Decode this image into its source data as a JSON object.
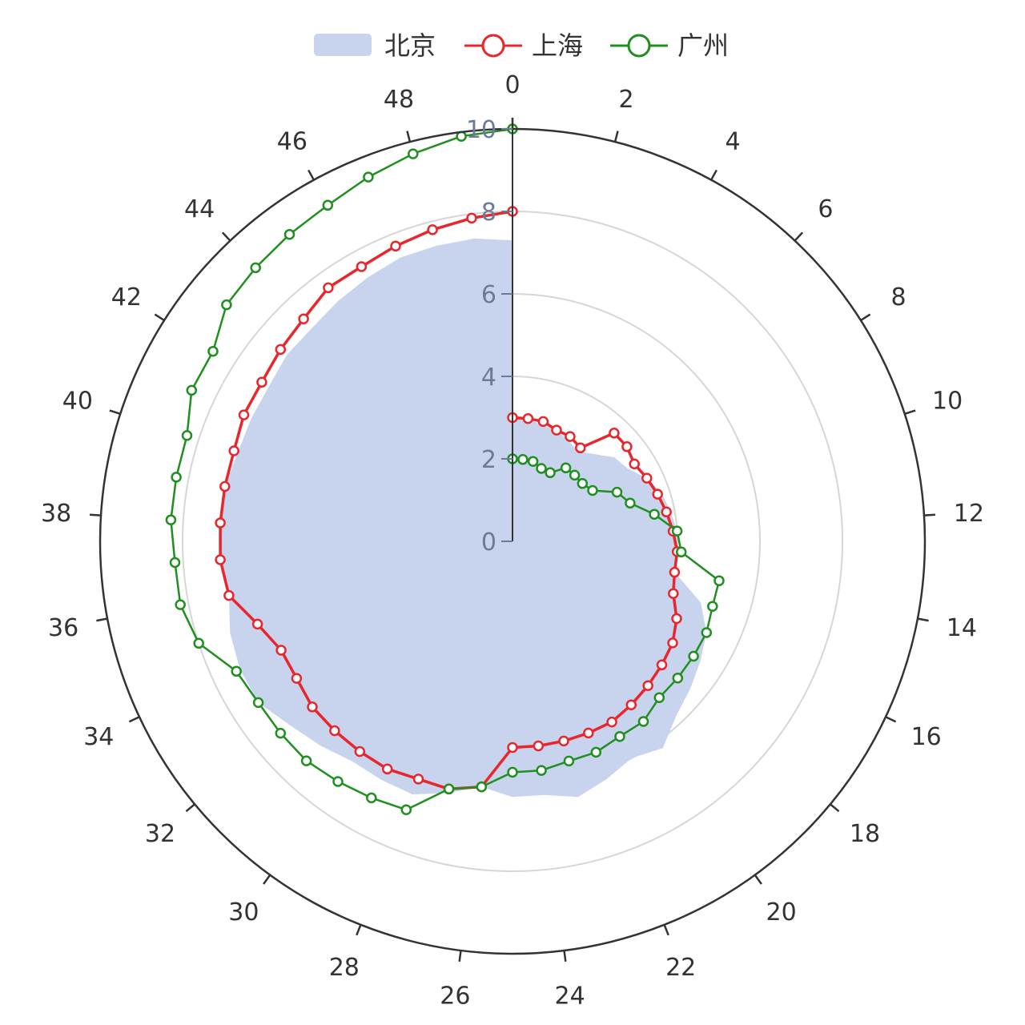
{
  "chart_data": {
    "type": "polar-line",
    "angle_axis": {
      "min": 0,
      "max": 50,
      "tick_labels": [
        "0",
        "2",
        "4",
        "6",
        "8",
        "10",
        "12",
        "14",
        "16",
        "18",
        "20",
        "22",
        "24",
        "26",
        "28",
        "30",
        "32",
        "34",
        "36",
        "38",
        "40",
        "42",
        "44",
        "46",
        "48"
      ],
      "clockwise": true
    },
    "radius_axis": {
      "min": 0,
      "max": 10,
      "tick_labels": [
        "0",
        "2",
        "4",
        "6",
        "8",
        "10"
      ]
    },
    "legend": {
      "position": "top-center"
    },
    "series": [
      {
        "name": "北京",
        "style": "area",
        "color": "#c8d4ee",
        "x": [
          0,
          1,
          2,
          3,
          4,
          5,
          6,
          7,
          8,
          9,
          10,
          11,
          12,
          13,
          14,
          15,
          16,
          17,
          18,
          19,
          20,
          21,
          22,
          23,
          24,
          25,
          26,
          27,
          28,
          29,
          30,
          31,
          32,
          33,
          34,
          35,
          36,
          37,
          38,
          39,
          40,
          41,
          42,
          43,
          44,
          45,
          46,
          47,
          48,
          49,
          50
        ],
        "y": [
          3.0,
          3.0,
          2.9,
          2.9,
          2.8,
          2.7,
          2.9,
          3.2,
          3.3,
          3.6,
          3.8,
          3.9,
          4.0,
          4.0,
          4.0,
          4.8,
          5.2,
          5.4,
          5.6,
          5.8,
          6.2,
          6.0,
          6.2,
          6.4,
          6.2,
          6.2,
          6.0,
          6.3,
          6.6,
          6.6,
          6.6,
          6.8,
          7.0,
          7.3,
          7.3,
          7.2,
          7.0,
          7.1,
          7.1,
          7.1,
          7.0,
          7.0,
          7.0,
          7.1,
          7.1,
          7.2,
          7.3,
          7.4,
          7.4,
          7.4,
          7.3
        ]
      },
      {
        "name": "上海",
        "style": "line",
        "color": "#e8262b",
        "x": [
          0,
          1,
          2,
          3,
          4,
          5,
          6,
          7,
          8,
          9,
          10,
          11,
          12,
          13,
          14,
          15,
          16,
          17,
          18,
          19,
          20,
          21,
          22,
          23,
          24,
          25,
          26,
          27,
          28,
          29,
          30,
          31,
          32,
          33,
          34,
          35,
          36,
          37,
          38,
          39,
          40,
          41,
          42,
          43,
          44,
          45,
          46,
          47,
          48,
          49,
          50
        ],
        "y": [
          3.0,
          3.0,
          3.0,
          2.9,
          2.9,
          2.8,
          3.6,
          3.6,
          3.5,
          3.6,
          3.7,
          3.8,
          3.9,
          4.0,
          4.0,
          4.1,
          4.4,
          4.6,
          4.7,
          4.8,
          4.9,
          5.0,
          5.0,
          5.0,
          5.0,
          5.0,
          6.0,
          6.2,
          6.2,
          6.3,
          6.3,
          6.3,
          6.3,
          6.2,
          6.2,
          6.5,
          7.0,
          7.1,
          7.1,
          7.1,
          7.1,
          7.2,
          7.2,
          7.3,
          7.4,
          7.6,
          7.6,
          7.7,
          7.8,
          7.9,
          8.0
        ]
      },
      {
        "name": "广州",
        "style": "line",
        "color": "#1f8f1f",
        "x": [
          0,
          1,
          2,
          3,
          4,
          5,
          6,
          7,
          8,
          9,
          10,
          11,
          12,
          13,
          14,
          15,
          16,
          17,
          18,
          19,
          20,
          21,
          22,
          23,
          24,
          25,
          26,
          27,
          28,
          29,
          30,
          31,
          32,
          33,
          34,
          35,
          36,
          37,
          38,
          39,
          40,
          41,
          42,
          43,
          44,
          45,
          46,
          47,
          48,
          49,
          50
        ],
        "y": [
          2.0,
          2.0,
          2.0,
          1.9,
          1.9,
          2.2,
          2.2,
          2.2,
          2.3,
          2.8,
          3.0,
          3.5,
          4.0,
          4.1,
          5.1,
          5.1,
          5.2,
          5.2,
          5.2,
          5.2,
          5.4,
          5.4,
          5.5,
          5.5,
          5.6,
          5.6,
          6.0,
          6.2,
          7.0,
          7.1,
          7.2,
          7.3,
          7.3,
          7.3,
          7.4,
          8.0,
          8.2,
          8.2,
          8.3,
          8.3,
          8.3,
          8.6,
          8.6,
          9.0,
          9.1,
          9.2,
          9.3,
          9.5,
          9.7,
          9.9,
          10.0
        ]
      }
    ]
  }
}
